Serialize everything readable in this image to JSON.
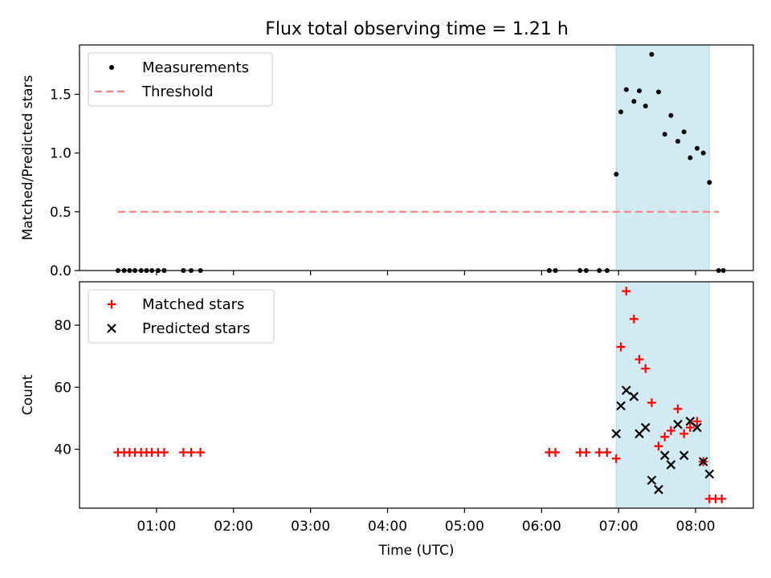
{
  "figure_title": "Flux total observing time = 1.21 h",
  "colors": {
    "highlight": "#add8e6",
    "measurement": "#000000",
    "threshold": "#ff7f7f",
    "matched": "#ff0000",
    "predicted": "#000000"
  },
  "chart_data": [
    {
      "type": "scatter",
      "title": "Flux total observing time = 1.21 h",
      "ylabel": "Matched/Predicted stars",
      "xlim_hours": [
        0.0,
        8.75
      ],
      "ylim": [
        0.0,
        1.92
      ],
      "yticks": [
        0.0,
        0.5,
        1.0,
        1.5
      ],
      "ytick_labels": [
        "0.0",
        "0.5",
        "1.0",
        "1.5"
      ],
      "highlight_span_hours": [
        6.97,
        8.18
      ],
      "legend": {
        "placement": "top-left",
        "entries": [
          "Measurements",
          "Threshold"
        ]
      },
      "threshold": {
        "name": "Threshold",
        "y": 0.5,
        "x_start_hours": 0.5,
        "x_end_hours": 8.3
      },
      "series": [
        {
          "name": "Measurements",
          "marker": "dot",
          "x_hours": [
            0.5,
            0.58,
            0.65,
            0.72,
            0.8,
            0.87,
            0.94,
            1.02,
            1.1,
            1.35,
            1.45,
            1.57,
            6.1,
            6.18,
            6.5,
            6.58,
            6.75,
            6.85,
            6.97,
            7.03,
            7.1,
            7.2,
            7.27,
            7.35,
            7.43,
            7.52,
            7.6,
            7.68,
            7.77,
            7.85,
            7.93,
            8.02,
            8.1,
            8.18,
            8.3,
            8.36
          ],
          "y": [
            0,
            0,
            0,
            0,
            0,
            0,
            0,
            0,
            0,
            0,
            0,
            0,
            0,
            0,
            0,
            0,
            0,
            0,
            0.82,
            1.35,
            1.54,
            1.44,
            1.53,
            1.4,
            1.84,
            1.52,
            1.16,
            1.32,
            1.1,
            1.18,
            0.96,
            1.04,
            1.0,
            0.75,
            0,
            0
          ]
        }
      ]
    },
    {
      "type": "scatter",
      "xlabel": "Time (UTC)",
      "ylabel": "Count",
      "xlim_hours": [
        0.0,
        8.75
      ],
      "ylim": [
        21,
        94
      ],
      "yticks": [
        40,
        60,
        80
      ],
      "ytick_labels": [
        "40",
        "60",
        "80"
      ],
      "xticks_hours": [
        1,
        2,
        3,
        4,
        5,
        6,
        7,
        8
      ],
      "xtick_labels": [
        "01:00",
        "02:00",
        "03:00",
        "04:00",
        "05:00",
        "06:00",
        "07:00",
        "08:00"
      ],
      "highlight_span_hours": [
        6.97,
        8.18
      ],
      "legend": {
        "placement": "top-left",
        "entries": [
          "Matched stars",
          "Predicted stars"
        ]
      },
      "series": [
        {
          "name": "Matched stars",
          "marker": "plus",
          "x_hours": [
            0.5,
            0.58,
            0.65,
            0.72,
            0.8,
            0.87,
            0.94,
            1.02,
            1.1,
            1.35,
            1.45,
            1.57,
            6.1,
            6.18,
            6.5,
            6.58,
            6.75,
            6.85,
            6.97,
            7.03,
            7.1,
            7.2,
            7.27,
            7.35,
            7.43,
            7.52,
            7.6,
            7.68,
            7.77,
            7.85,
            7.93,
            8.02,
            8.1,
            8.18,
            8.26,
            8.34
          ],
          "y": [
            39,
            39,
            39,
            39,
            39,
            39,
            39,
            39,
            39,
            39,
            39,
            39,
            39,
            39,
            39,
            39,
            39,
            39,
            37,
            73,
            91,
            82,
            69,
            66,
            55,
            41,
            44,
            46,
            53,
            45,
            47,
            49,
            36,
            24,
            24,
            24
          ]
        },
        {
          "name": "Predicted stars",
          "marker": "x",
          "x_hours": [
            6.97,
            7.03,
            7.1,
            7.2,
            7.27,
            7.35,
            7.43,
            7.52,
            7.6,
            7.68,
            7.77,
            7.85,
            7.93,
            8.02,
            8.1,
            8.18
          ],
          "y": [
            45,
            54,
            59,
            57,
            45,
            47,
            30,
            27,
            38,
            35,
            48,
            38,
            49,
            47,
            36,
            32
          ]
        }
      ]
    }
  ]
}
